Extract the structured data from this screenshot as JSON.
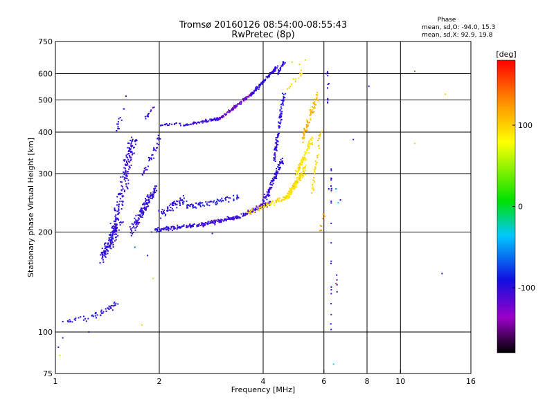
{
  "header": {
    "title_line1": "Tromsø 20160126 08:54:00-08:55:43",
    "title_line2": "RwPretec (8p)"
  },
  "phase_info": {
    "heading": "Phase",
    "line_o": "mean, sd,O: -94.0, 15.3",
    "line_x": "mean, sd,X:  92.9, 19.8"
  },
  "colorbar": {
    "unit": "[deg]",
    "range": [
      -180,
      180
    ],
    "ticks": [
      {
        "value": 100,
        "label": "100"
      },
      {
        "value": 0,
        "label": "0"
      },
      {
        "value": -100,
        "label": "-100"
      }
    ]
  },
  "chart_data": {
    "type": "scatter",
    "title": "Tromsø 20160126 08:54:00-08:55:43",
    "subtitle": "RwPretec (8p)",
    "xlabel": "Frequency [MHz]",
    "ylabel": "Stationary phase Virtual Height [km]",
    "xscale": "log",
    "yscale": "log",
    "xlim": [
      1,
      16
    ],
    "ylim": [
      75,
      750
    ],
    "xticks": [
      {
        "value": 1,
        "label": "1"
      },
      {
        "value": 2,
        "label": "2"
      },
      {
        "value": 4,
        "label": "4"
      },
      {
        "value": 6,
        "label": "6"
      },
      {
        "value": 8,
        "label": "8"
      },
      {
        "value": 10,
        "label": "10"
      },
      {
        "value": 16,
        "label": "16"
      }
    ],
    "yticks": [
      {
        "value": 75,
        "label": "75"
      },
      {
        "value": 100,
        "label": "100"
      },
      {
        "value": 200,
        "label": "200"
      },
      {
        "value": 300,
        "label": "300"
      },
      {
        "value": 400,
        "label": "400"
      },
      {
        "value": 500,
        "label": "500"
      },
      {
        "value": 600,
        "label": "600"
      },
      {
        "value": 750,
        "label": "750"
      }
    ],
    "grid_x": [
      2,
      4,
      6,
      8,
      10
    ],
    "grid_y": [
      100,
      200,
      300,
      400,
      500,
      600
    ],
    "color_variable": "phase [deg]",
    "colormap": [
      "#000000",
      "#9b00c8",
      "#1010e0",
      "#00c8ff",
      "#00e000",
      "#ffff00",
      "#ff8c00",
      "#ff0000"
    ],
    "traces": [
      {
        "f0": 1.05,
        "f1": 1.22,
        "h0": 106,
        "h1": 112,
        "n": 14,
        "jitter": 0.03,
        "ph": -100
      },
      {
        "f0": 1.22,
        "f1": 1.52,
        "h0": 108,
        "h1": 122,
        "n": 40,
        "jitter": 0.06,
        "ph": -95
      },
      {
        "f0": 1.35,
        "f1": 1.55,
        "h0": 165,
        "h1": 215,
        "n": 110,
        "jitter": 0.1,
        "ph": -98
      },
      {
        "f0": 1.45,
        "f1": 1.68,
        "h0": 185,
        "h1": 380,
        "n": 200,
        "jitter": 0.12,
        "ph": -100
      },
      {
        "f0": 1.5,
        "f1": 1.62,
        "h0": 400,
        "h1": 520,
        "n": 14,
        "jitter": 0.05,
        "ph": -100
      },
      {
        "f0": 1.65,
        "f1": 1.95,
        "h0": 200,
        "h1": 270,
        "n": 140,
        "jitter": 0.08,
        "ph": -102
      },
      {
        "f0": 1.8,
        "f1": 2.0,
        "h0": 300,
        "h1": 380,
        "n": 35,
        "jitter": 0.07,
        "ph": -100
      },
      {
        "f0": 1.82,
        "f1": 1.96,
        "h0": 440,
        "h1": 480,
        "n": 12,
        "jitter": 0.04,
        "ph": -100
      },
      {
        "f0": 1.95,
        "f1": 2.6,
        "h0": 203,
        "h1": 210,
        "n": 90,
        "jitter": 0.035,
        "ph": -100
      },
      {
        "f0": 2.0,
        "f1": 2.4,
        "h0": 225,
        "h1": 255,
        "n": 60,
        "jitter": 0.07,
        "ph": -100
      },
      {
        "f0": 2.6,
        "f1": 3.4,
        "h0": 210,
        "h1": 222,
        "n": 120,
        "jitter": 0.035,
        "ph": -105
      },
      {
        "f0": 2.4,
        "f1": 3.4,
        "h0": 238,
        "h1": 255,
        "n": 70,
        "jitter": 0.05,
        "ph": -95
      },
      {
        "f0": 3.4,
        "f1": 4.2,
        "h0": 222,
        "h1": 245,
        "n": 110,
        "jitter": 0.04,
        "ph": -105
      },
      {
        "f0": 4.0,
        "f1": 4.55,
        "h0": 245,
        "h1": 330,
        "n": 110,
        "jitter": 0.05,
        "ph": -100
      },
      {
        "f0": 4.3,
        "f1": 4.6,
        "h0": 330,
        "h1": 520,
        "n": 90,
        "jitter": 0.05,
        "ph": -100
      },
      {
        "f0": 2.0,
        "f1": 2.3,
        "h0": 420,
        "h1": 425,
        "n": 20,
        "jitter": 0.02,
        "ph": -100
      },
      {
        "f0": 2.3,
        "f1": 3.0,
        "h0": 418,
        "h1": 440,
        "n": 70,
        "jitter": 0.025,
        "ph": -102
      },
      {
        "f0": 3.0,
        "f1": 3.7,
        "h0": 440,
        "h1": 520,
        "n": 90,
        "jitter": 0.025,
        "ph": -120
      },
      {
        "f0": 3.7,
        "f1": 4.4,
        "h0": 520,
        "h1": 630,
        "n": 100,
        "jitter": 0.03,
        "ph": -100
      },
      {
        "f0": 4.4,
        "f1": 4.6,
        "h0": 600,
        "h1": 650,
        "n": 25,
        "jitter": 0.03,
        "ph": -95
      },
      {
        "f0": 3.6,
        "f1": 4.7,
        "h0": 228,
        "h1": 255,
        "n": 70,
        "jitter": 0.04,
        "ph": 95
      },
      {
        "f0": 4.7,
        "f1": 5.3,
        "h0": 255,
        "h1": 310,
        "n": 120,
        "jitter": 0.06,
        "ph": 92
      },
      {
        "f0": 5.0,
        "f1": 5.55,
        "h0": 300,
        "h1": 380,
        "n": 80,
        "jitter": 0.06,
        "ph": 92
      },
      {
        "f0": 5.2,
        "f1": 5.75,
        "h0": 380,
        "h1": 520,
        "n": 70,
        "jitter": 0.06,
        "ph": 110
      },
      {
        "f0": 4.7,
        "f1": 5.2,
        "h0": 540,
        "h1": 610,
        "n": 14,
        "jitter": 0.05,
        "ph": 100
      },
      {
        "f0": 5.55,
        "f1": 5.85,
        "h0": 260,
        "h1": 400,
        "n": 35,
        "jitter": 0.05,
        "ph": 100
      },
      {
        "f0": 5.8,
        "f1": 6.0,
        "h0": 190,
        "h1": 230,
        "n": 8,
        "jitter": 0.05,
        "ph": 120
      }
    ],
    "outliers": [
      {
        "x": 1.05,
        "y": 96,
        "phase": -100
      },
      {
        "x": 1.03,
        "y": 85,
        "phase": 90
      },
      {
        "x": 1.02,
        "y": 90,
        "phase": -100
      },
      {
        "x": 1.25,
        "y": 100,
        "phase": -100
      },
      {
        "x": 1.78,
        "y": 105,
        "phase": 100
      },
      {
        "x": 1.92,
        "y": 145,
        "phase": 100
      },
      {
        "x": 1.7,
        "y": 180,
        "phase": -60
      },
      {
        "x": 1.85,
        "y": 170,
        "phase": -100
      },
      {
        "x": 1.9,
        "y": 200,
        "phase": -100
      },
      {
        "x": 2.85,
        "y": 198,
        "phase": -100
      },
      {
        "x": 6.2,
        "y": 270,
        "phase": -100
      },
      {
        "x": 6.5,
        "y": 270,
        "phase": -50
      },
      {
        "x": 6.7,
        "y": 250,
        "phase": -100
      },
      {
        "x": 7.3,
        "y": 380,
        "phase": -100
      },
      {
        "x": 6.4,
        "y": 80,
        "phase": -30
      },
      {
        "x": 6.6,
        "y": 245,
        "phase": -30
      },
      {
        "x": 6.5,
        "y": 140,
        "phase": 160
      },
      {
        "x": 8.1,
        "y": 550,
        "phase": -100
      },
      {
        "x": 11.0,
        "y": 610,
        "phase": 150
      },
      {
        "x": 11.0,
        "y": 370,
        "phase": 100
      },
      {
        "x": 13.5,
        "y": 520,
        "phase": 100
      },
      {
        "x": 13.2,
        "y": 150,
        "phase": -100
      },
      {
        "x": 6.1,
        "y": 600,
        "phase": -100
      },
      {
        "x": 6.2,
        "y": 560,
        "phase": -100
      },
      {
        "x": 4.85,
        "y": 650,
        "phase": 100
      },
      {
        "x": 5.3,
        "y": 660,
        "phase": 100
      },
      {
        "x": 5.1,
        "y": 640,
        "phase": 100
      }
    ],
    "column_traces": [
      {
        "f": 6.3,
        "h0": 100,
        "h1": 310,
        "n": 22,
        "ph": -100
      },
      {
        "f": 6.15,
        "h0": 480,
        "h1": 620,
        "n": 10,
        "ph": -100
      },
      {
        "f": 6.55,
        "h0": 120,
        "h1": 160,
        "n": 4,
        "ph": -100
      }
    ]
  }
}
